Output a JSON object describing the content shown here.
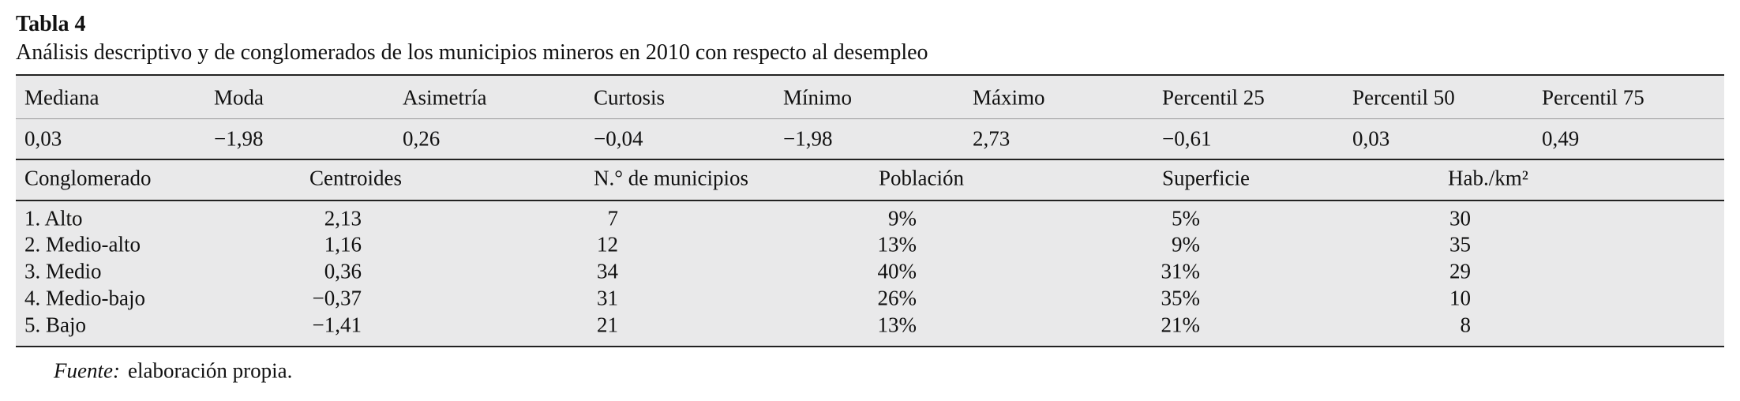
{
  "title": "Tabla 4",
  "subtitle": "Análisis descriptivo y de conglomerados de los municipios mineros en 2010 con respecto al desempleo",
  "stats": {
    "headers": [
      "Mediana",
      "Moda",
      "Asimetría",
      "Curtosis",
      "Mínimo",
      "Máximo",
      "Percentil 25",
      "Percentil 50",
      "Percentil 75"
    ],
    "values": [
      "0,03",
      "−1,98",
      "0,26",
      "−0,04",
      "−1,98",
      "2,73",
      "−0,61",
      "0,03",
      "0,49"
    ]
  },
  "clusters": {
    "headers": [
      "Conglomerado",
      "Centroides",
      "N.° de municipios",
      "Población",
      "Superficie",
      "Hab./km²"
    ],
    "rows": [
      [
        "1. Alto",
        "2,13",
        "7",
        "9%",
        "5%",
        "30"
      ],
      [
        "2. Medio-alto",
        "1,16",
        "12",
        "13%",
        "9%",
        "35"
      ],
      [
        "3. Medio",
        "0,36",
        "34",
        "40%",
        "31%",
        "29"
      ],
      [
        "4. Medio-bajo",
        "−0,37",
        "31",
        "26%",
        "35%",
        "10"
      ],
      [
        "5. Bajo",
        "−1,41",
        "21",
        "13%",
        "21%",
        "8"
      ]
    ]
  },
  "footnote": {
    "label": "Fuente:",
    "text": "elaboración propia."
  }
}
